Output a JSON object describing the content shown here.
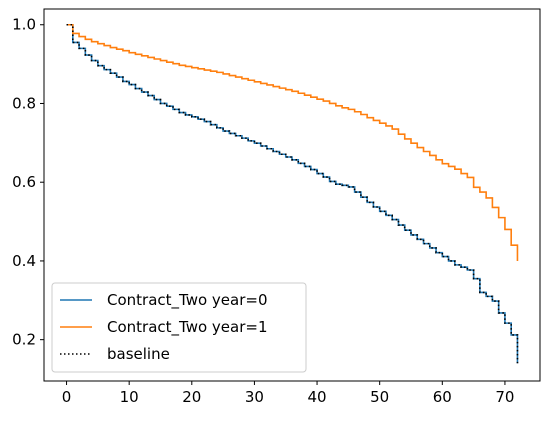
{
  "chart_data": {
    "type": "line",
    "step": true,
    "title": "",
    "xlabel": "",
    "ylabel": "",
    "xlim": [
      -3.6,
      75.6
    ],
    "ylim": [
      0.095,
      1.04
    ],
    "xticks": [
      0,
      10,
      20,
      30,
      40,
      50,
      60,
      70
    ],
    "yticks": [
      0.2,
      0.4,
      0.6,
      0.8,
      1.0
    ],
    "ytick_labels": [
      "0.2",
      "0.4",
      "0.6",
      "0.8",
      "1.0"
    ],
    "grid": false,
    "legend_position": "lower-left",
    "series": [
      {
        "name": "Contract_Two year=0",
        "color": "#1f77b4",
        "style": "solid",
        "x": [
          0,
          1,
          2,
          3,
          4,
          5,
          6,
          7,
          8,
          9,
          10,
          11,
          12,
          13,
          14,
          15,
          16,
          17,
          18,
          19,
          20,
          21,
          22,
          23,
          24,
          25,
          26,
          27,
          28,
          29,
          30,
          31,
          32,
          33,
          34,
          35,
          36,
          37,
          38,
          39,
          40,
          41,
          42,
          43,
          44,
          45,
          46,
          47,
          48,
          49,
          50,
          51,
          52,
          53,
          54,
          55,
          56,
          57,
          58,
          59,
          60,
          61,
          62,
          63,
          64,
          65,
          66,
          67,
          68,
          69,
          70,
          71,
          72
        ],
        "y": [
          1.0,
          0.955,
          0.94,
          0.923,
          0.909,
          0.896,
          0.886,
          0.877,
          0.867,
          0.856,
          0.848,
          0.838,
          0.829,
          0.82,
          0.81,
          0.8,
          0.793,
          0.785,
          0.777,
          0.771,
          0.766,
          0.76,
          0.754,
          0.746,
          0.738,
          0.73,
          0.724,
          0.718,
          0.712,
          0.705,
          0.699,
          0.692,
          0.685,
          0.678,
          0.671,
          0.664,
          0.657,
          0.648,
          0.64,
          0.632,
          0.622,
          0.613,
          0.602,
          0.595,
          0.592,
          0.588,
          0.575,
          0.562,
          0.549,
          0.537,
          0.526,
          0.516,
          0.505,
          0.491,
          0.478,
          0.466,
          0.455,
          0.444,
          0.433,
          0.421,
          0.411,
          0.4,
          0.39,
          0.384,
          0.377,
          0.355,
          0.32,
          0.31,
          0.298,
          0.268,
          0.242,
          0.212,
          0.14
        ]
      },
      {
        "name": "Contract_Two year=1",
        "color": "#ff7f0e",
        "style": "solid",
        "x": [
          0,
          1,
          2,
          3,
          4,
          5,
          6,
          7,
          8,
          9,
          10,
          11,
          12,
          13,
          14,
          15,
          16,
          17,
          18,
          19,
          20,
          21,
          22,
          23,
          24,
          25,
          26,
          27,
          28,
          29,
          30,
          31,
          32,
          33,
          34,
          35,
          36,
          37,
          38,
          39,
          40,
          41,
          42,
          43,
          44,
          45,
          46,
          47,
          48,
          49,
          50,
          51,
          52,
          53,
          54,
          55,
          56,
          57,
          58,
          59,
          60,
          61,
          62,
          63,
          64,
          65,
          66,
          67,
          68,
          69,
          70,
          71,
          72
        ],
        "y": [
          1.0,
          0.978,
          0.97,
          0.963,
          0.957,
          0.952,
          0.947,
          0.942,
          0.938,
          0.934,
          0.929,
          0.925,
          0.921,
          0.917,
          0.913,
          0.909,
          0.905,
          0.901,
          0.897,
          0.894,
          0.891,
          0.888,
          0.885,
          0.882,
          0.879,
          0.875,
          0.871,
          0.867,
          0.863,
          0.859,
          0.855,
          0.851,
          0.847,
          0.843,
          0.839,
          0.835,
          0.831,
          0.826,
          0.821,
          0.816,
          0.811,
          0.806,
          0.8,
          0.794,
          0.789,
          0.785,
          0.779,
          0.772,
          0.764,
          0.757,
          0.75,
          0.743,
          0.735,
          0.722,
          0.71,
          0.699,
          0.688,
          0.678,
          0.668,
          0.657,
          0.647,
          0.64,
          0.633,
          0.622,
          0.612,
          0.587,
          0.575,
          0.56,
          0.536,
          0.51,
          0.48,
          0.44,
          0.4
        ]
      },
      {
        "name": "baseline",
        "color": "#000000",
        "style": "dotted",
        "x": [
          0,
          1,
          2,
          3,
          4,
          5,
          6,
          7,
          8,
          9,
          10,
          11,
          12,
          13,
          14,
          15,
          16,
          17,
          18,
          19,
          20,
          21,
          22,
          23,
          24,
          25,
          26,
          27,
          28,
          29,
          30,
          31,
          32,
          33,
          34,
          35,
          36,
          37,
          38,
          39,
          40,
          41,
          42,
          43,
          44,
          45,
          46,
          47,
          48,
          49,
          50,
          51,
          52,
          53,
          54,
          55,
          56,
          57,
          58,
          59,
          60,
          61,
          62,
          63,
          64,
          65,
          66,
          67,
          68,
          69,
          70,
          71,
          72
        ],
        "y": [
          1.0,
          0.955,
          0.94,
          0.923,
          0.909,
          0.896,
          0.886,
          0.877,
          0.867,
          0.856,
          0.848,
          0.838,
          0.829,
          0.82,
          0.81,
          0.8,
          0.793,
          0.785,
          0.777,
          0.771,
          0.766,
          0.76,
          0.754,
          0.746,
          0.738,
          0.73,
          0.724,
          0.718,
          0.712,
          0.705,
          0.699,
          0.692,
          0.685,
          0.678,
          0.671,
          0.664,
          0.657,
          0.648,
          0.64,
          0.632,
          0.622,
          0.613,
          0.602,
          0.595,
          0.592,
          0.588,
          0.575,
          0.562,
          0.549,
          0.537,
          0.526,
          0.516,
          0.505,
          0.491,
          0.478,
          0.466,
          0.455,
          0.444,
          0.433,
          0.421,
          0.411,
          0.4,
          0.39,
          0.384,
          0.377,
          0.355,
          0.32,
          0.31,
          0.298,
          0.268,
          0.242,
          0.212,
          0.14
        ]
      }
    ]
  }
}
